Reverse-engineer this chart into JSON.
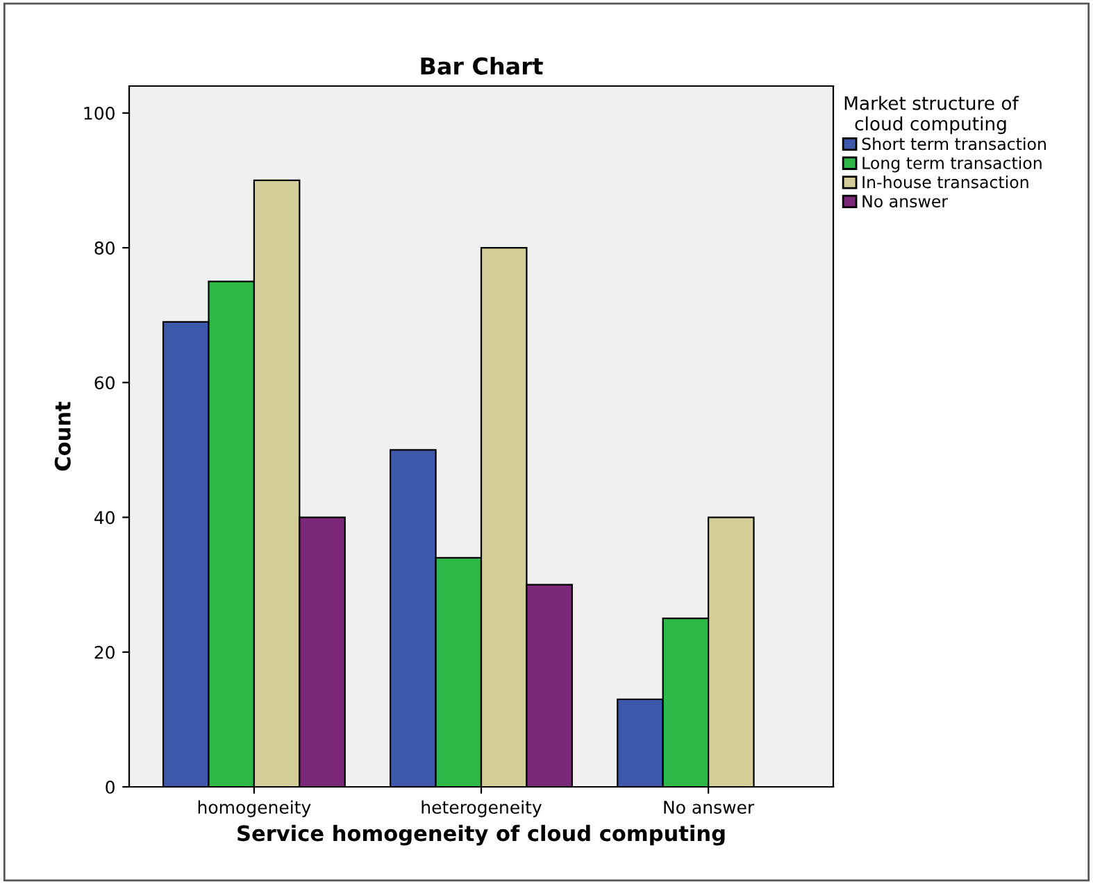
{
  "chart_data": {
    "type": "bar",
    "title": "Bar Chart",
    "xlabel": "Service homogeneity of cloud computing",
    "ylabel": "Count",
    "legend_title": "Market structure of\ncloud computing",
    "legend": "right",
    "grid": false,
    "categories": [
      "homogeneity",
      "heterogeneity",
      "No answer"
    ],
    "ylim": [
      0,
      104
    ],
    "yticks": [
      0,
      20,
      40,
      60,
      80,
      100
    ],
    "series": [
      {
        "name": "Short term transaction",
        "color": "#3e58ac",
        "values": [
          69,
          50,
          13
        ]
      },
      {
        "name": "Long term transaction",
        "color": "#2eb848",
        "values": [
          75,
          34,
          25
        ]
      },
      {
        "name": "In-house transaction",
        "color": "#d3ce97",
        "values": [
          90,
          80,
          40
        ]
      },
      {
        "name": "No answer",
        "color": "#7b277a",
        "values": [
          40,
          30,
          null
        ]
      }
    ]
  }
}
